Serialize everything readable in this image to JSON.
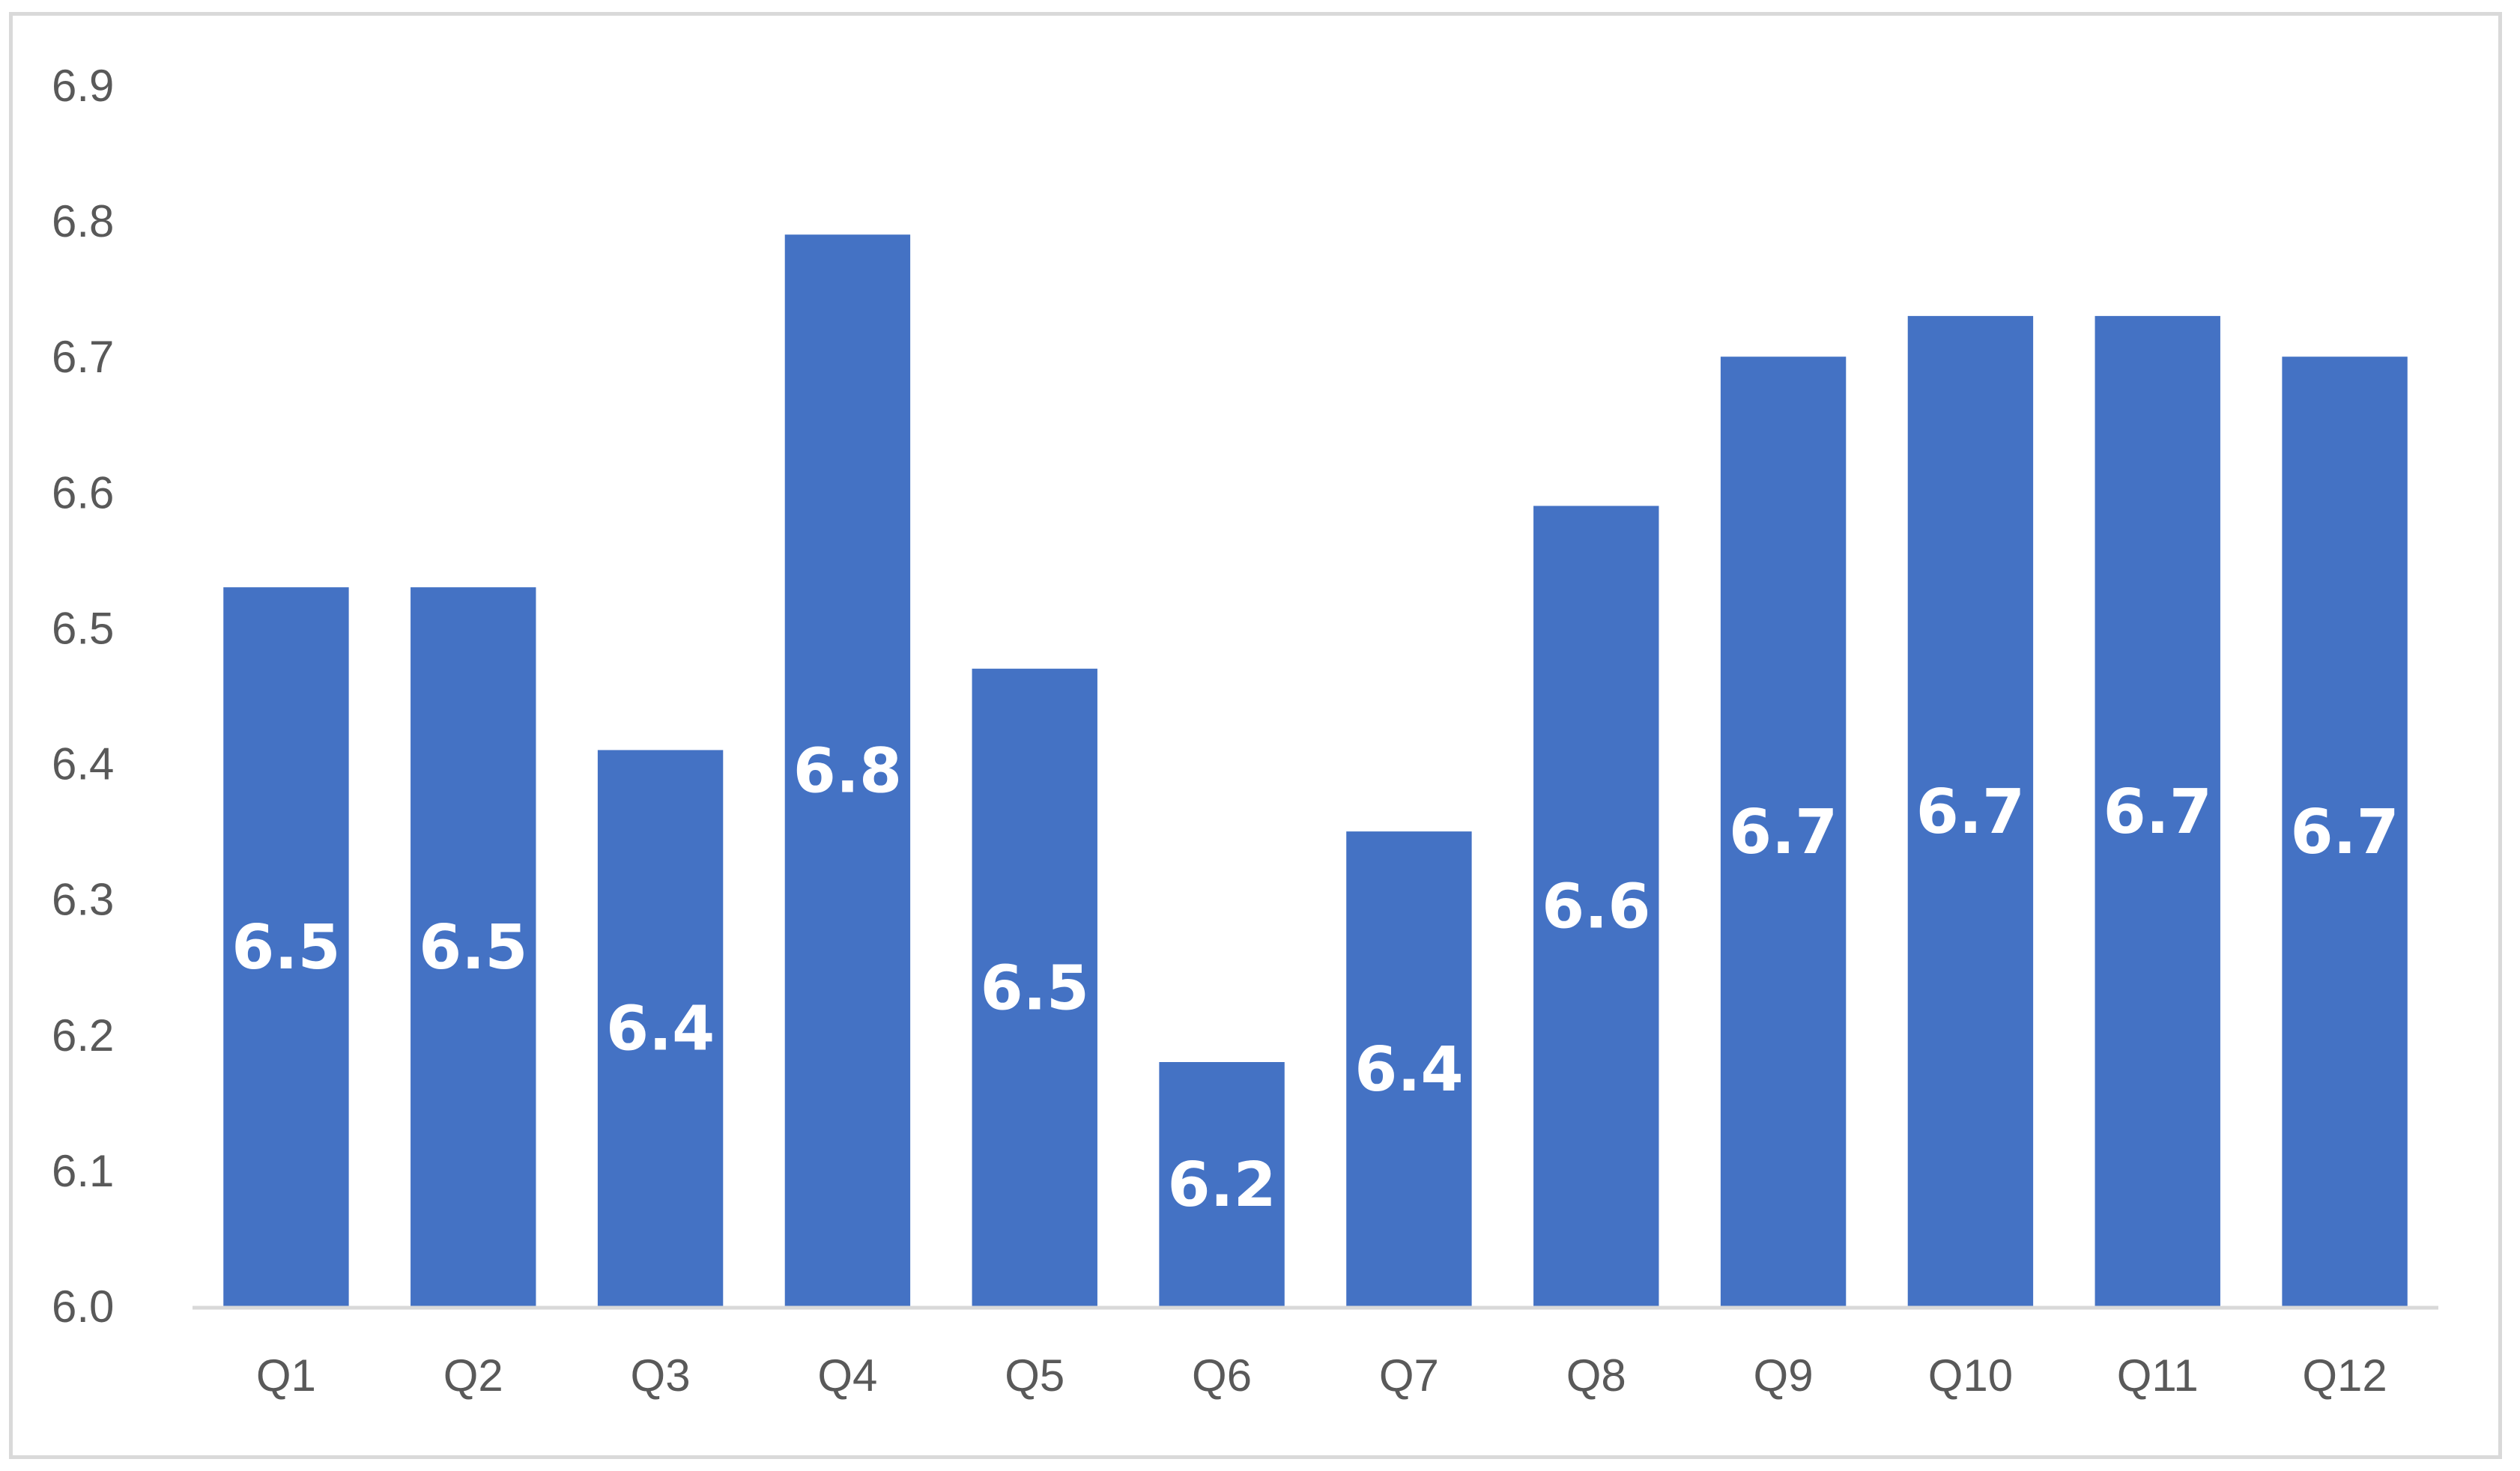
{
  "chart_data": {
    "type": "bar",
    "title": "",
    "xlabel": "",
    "ylabel": "",
    "categories": [
      "Q1",
      "Q2",
      "Q3",
      "Q4",
      "Q5",
      "Q6",
      "Q7",
      "Q8",
      "Q9",
      "Q10",
      "Q11",
      "Q12"
    ],
    "values": [
      6.53,
      6.53,
      6.41,
      6.79,
      6.47,
      6.18,
      6.35,
      6.59,
      6.7,
      6.73,
      6.73,
      6.7
    ],
    "data_labels": [
      "6.5",
      "6.5",
      "6.4",
      "6.8",
      "6.5",
      "6.2",
      "6.4",
      "6.6",
      "6.7",
      "6.7",
      "6.7",
      "6.7"
    ],
    "ylim": [
      6.0,
      6.9
    ],
    "yticks": [
      "6.0",
      "6.1",
      "6.2",
      "6.3",
      "6.4",
      "6.5",
      "6.6",
      "6.7",
      "6.8",
      "6.9"
    ],
    "grid": false,
    "legend": "none",
    "bar_color": "#4472c4",
    "label_color": "#ffffff",
    "axis_color": "#d9d9d9",
    "tick_color": "#595959"
  }
}
